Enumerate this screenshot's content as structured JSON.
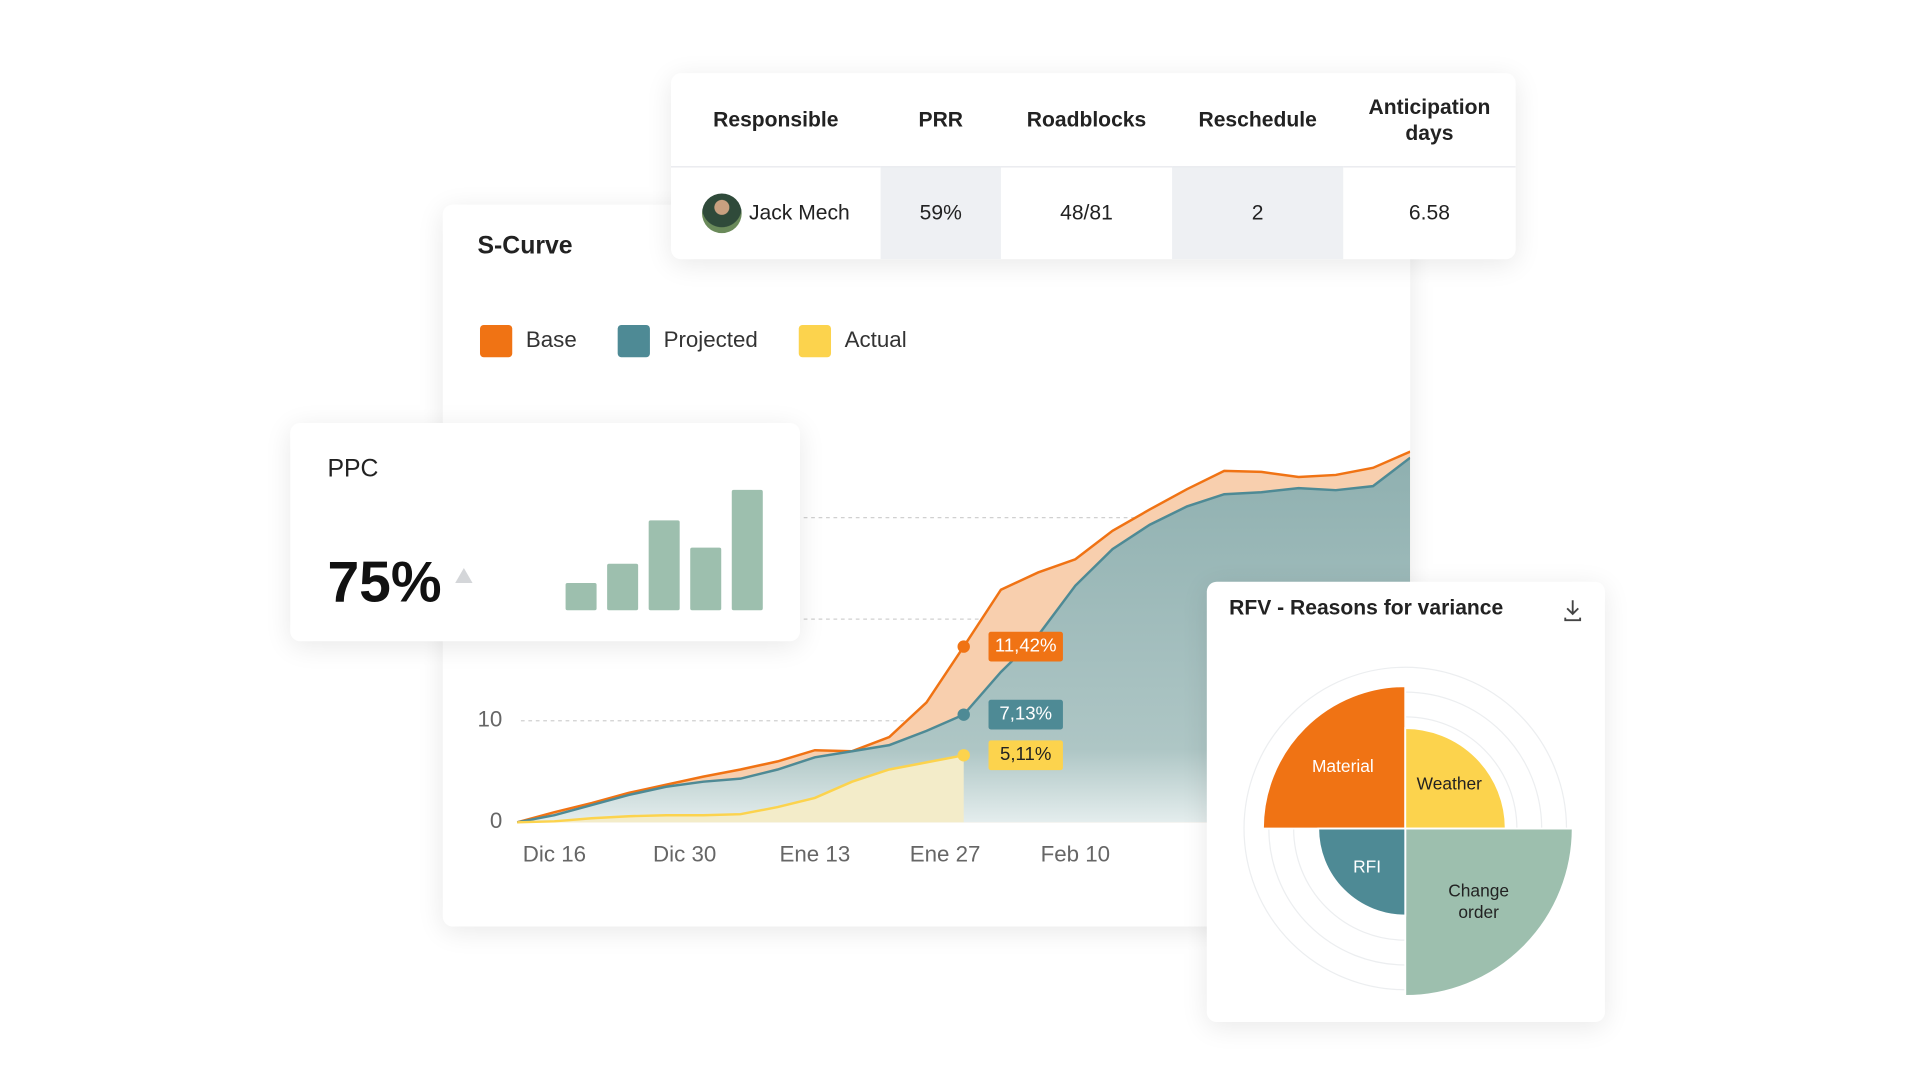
{
  "table": {
    "headers": [
      "Responsible",
      "PRR",
      "Roadblocks",
      "Reschedule",
      "Anticipation days"
    ],
    "rows": [
      [
        "Jack Mech",
        "59%",
        "48/81",
        "2",
        "6.58"
      ]
    ]
  },
  "chart_data": [
    {
      "type": "area",
      "title": "S-Curve",
      "x": [
        0,
        4,
        8,
        12,
        16,
        20,
        24,
        28,
        32,
        36,
        40,
        44,
        48,
        52,
        56,
        60,
        64,
        68,
        72,
        76,
        80,
        84,
        88,
        92,
        96
      ],
      "xlim": [
        0,
        96
      ],
      "xticks": [
        {
          "value": 4,
          "label": "Dic 16"
        },
        {
          "value": 18,
          "label": "Dic 30"
        },
        {
          "value": 32,
          "label": "Ene 13"
        },
        {
          "value": 46,
          "label": "Ene 27"
        },
        {
          "value": 60,
          "label": "Feb 10"
        }
      ],
      "ylim": [
        0,
        37
      ],
      "yticks": [
        0,
        10,
        20,
        30
      ],
      "grid": true,
      "series": [
        {
          "name": "Base",
          "color": "#f07314",
          "values": [
            0,
            1.0,
            1.9,
            2.9,
            3.7,
            4.5,
            5.2,
            6.0,
            7.1,
            7.0,
            8.4,
            11.8,
            17.3,
            22.9,
            24.6,
            25.9,
            28.7,
            30.8,
            32.8,
            34.6,
            34.5,
            34.0,
            34.2,
            34.9,
            36.5
          ]
        },
        {
          "name": "Projected",
          "color": "#4e8a95",
          "values": [
            0,
            0.7,
            1.7,
            2.7,
            3.5,
            4.0,
            4.3,
            5.2,
            6.4,
            7.0,
            7.6,
            9.0,
            10.6,
            14.8,
            18.4,
            23.3,
            26.9,
            29.3,
            31.1,
            32.3,
            32.5,
            32.9,
            32.7,
            33.1,
            35.9
          ]
        },
        {
          "name": "Actual",
          "color": "#fcd34d",
          "values": [
            0,
            0.1,
            0.4,
            0.6,
            0.7,
            0.7,
            0.8,
            1.5,
            2.4,
            4.0,
            5.2,
            5.9,
            6.6,
            null,
            null,
            null,
            null,
            null,
            null,
            null,
            null,
            null,
            null,
            null,
            null
          ]
        }
      ],
      "annotations": [
        {
          "text": "11,42%",
          "series": "Base",
          "x": 48
        },
        {
          "text": "7,13%",
          "series": "Projected",
          "x": 48
        },
        {
          "text": "5,11%",
          "series": "Actual",
          "x": 48
        }
      ]
    },
    {
      "type": "bar",
      "title": "PPC",
      "headline": "75%",
      "values": [
        17,
        29,
        56,
        39,
        75
      ],
      "ylim": [
        0,
        75
      ],
      "color": "#9dbfae"
    },
    {
      "type": "polar",
      "title": "RFV - Reasons for variance",
      "categories": [
        "Material",
        "Weather",
        "Change order",
        "RFI"
      ],
      "values": [
        85,
        60,
        100,
        52
      ],
      "colors": [
        "#f07314",
        "#fcd34d",
        "#9dbfae",
        "#4e8a95"
      ],
      "rlim": [
        0,
        100
      ]
    }
  ]
}
